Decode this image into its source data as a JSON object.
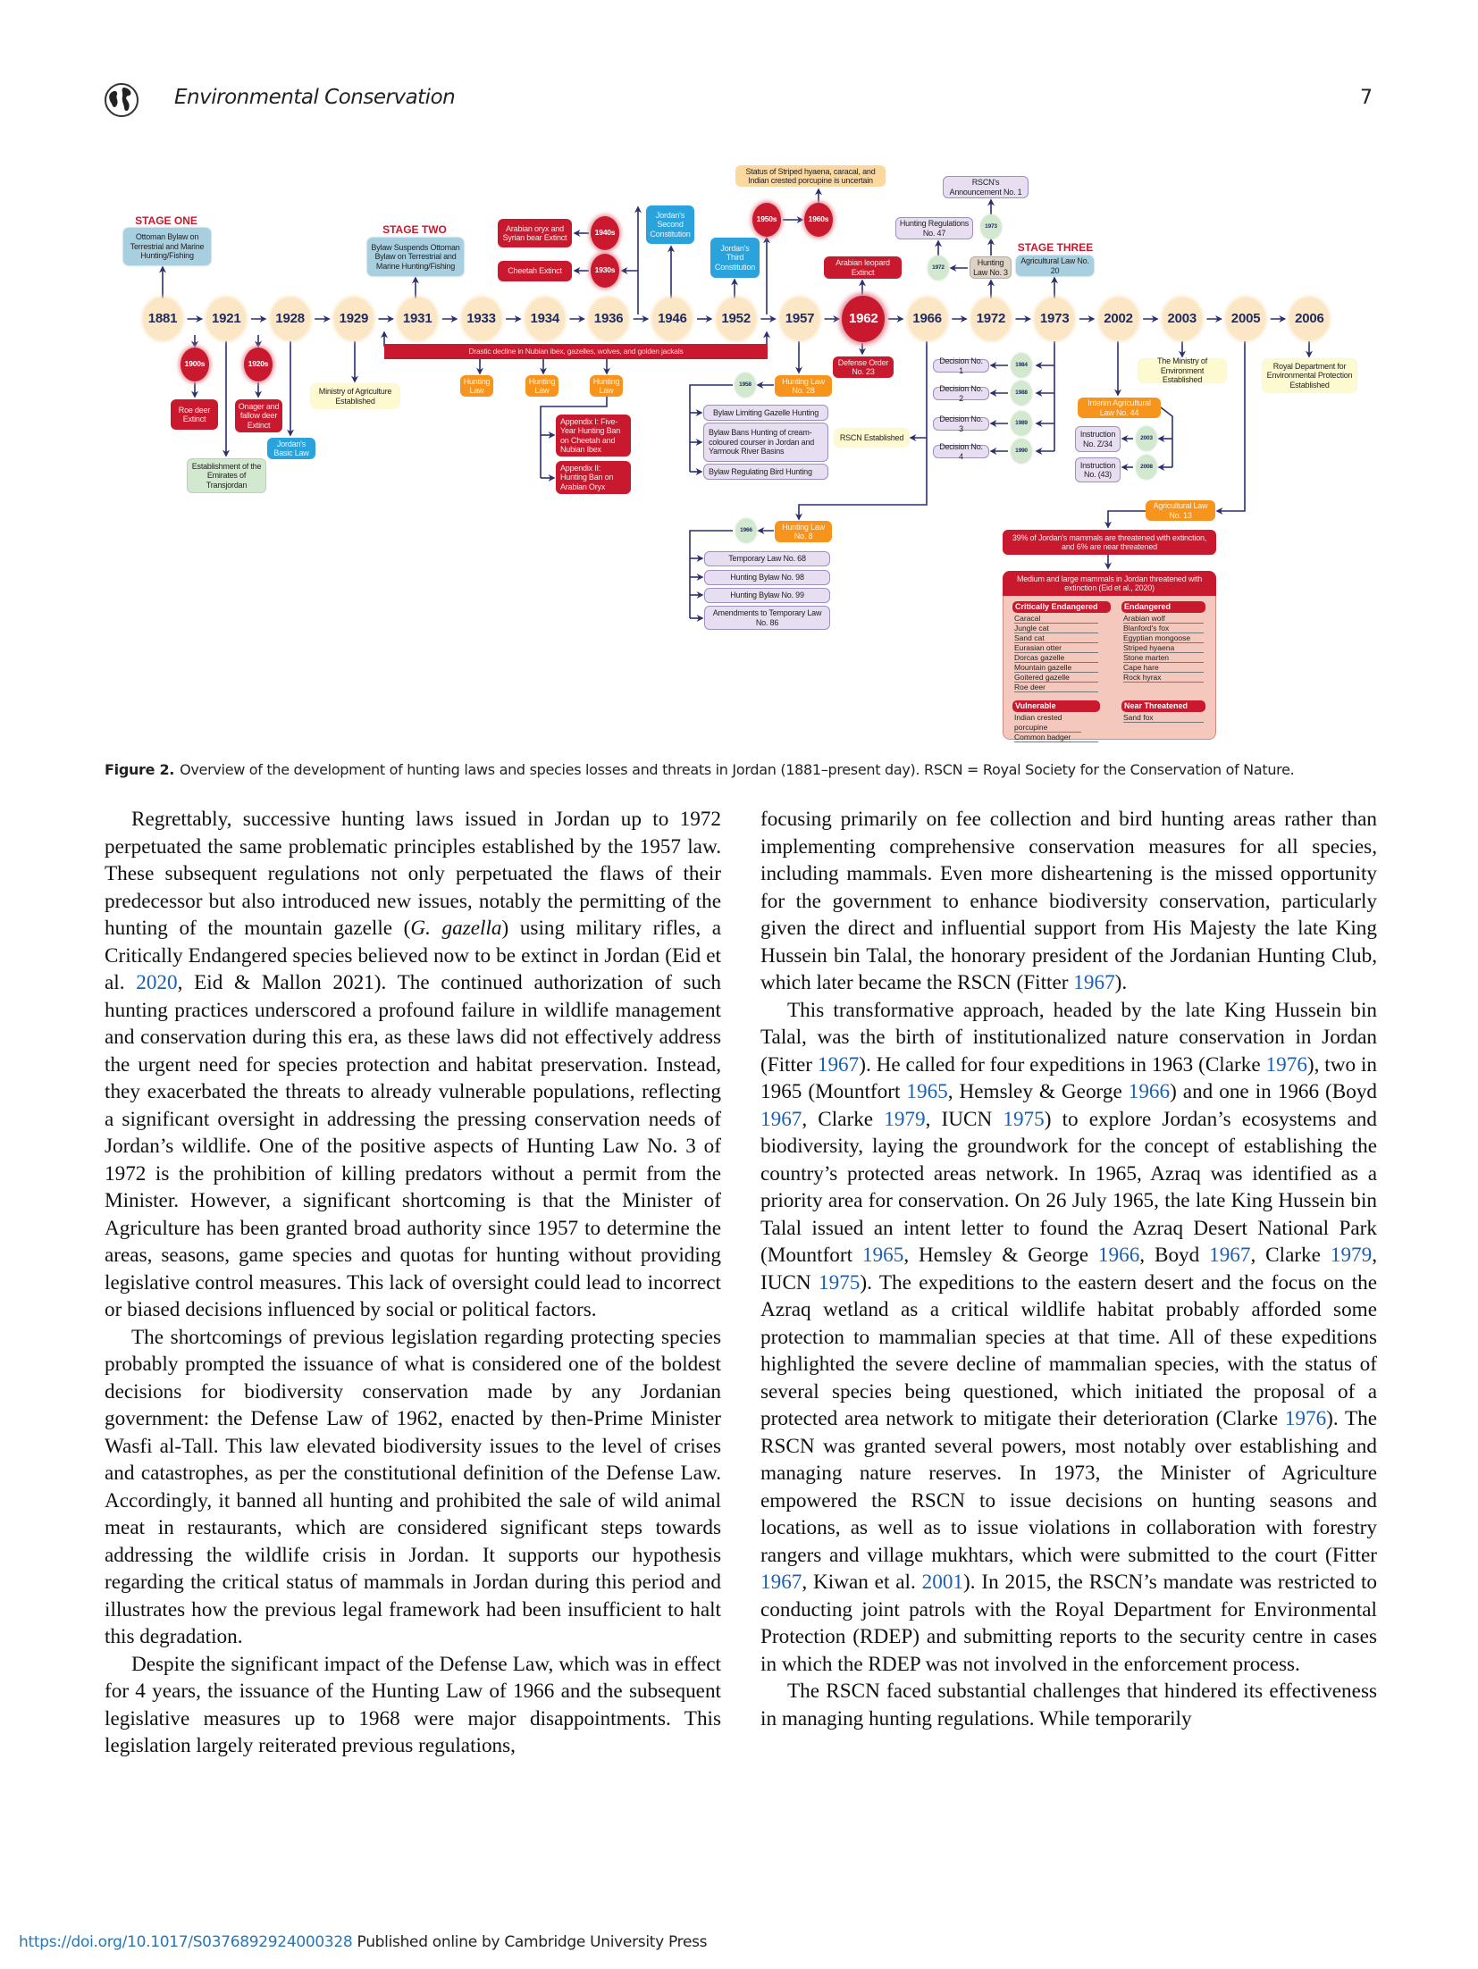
{
  "header": {
    "journal": "Environmental Conservation",
    "page_number": "7",
    "logo_icon": "globe-icon"
  },
  "colors": {
    "red": "#c8192e",
    "blue": "#2aa2db",
    "orange": "#f7941d",
    "arrow": "#2a2f6e",
    "link": "#1a5fb4"
  },
  "figure": {
    "years": [
      "1881",
      "1921",
      "1928",
      "1929",
      "1931",
      "1933",
      "1934",
      "1936",
      "1946",
      "1952",
      "1957",
      "1962",
      "1966",
      "1972",
      "1973",
      "2002",
      "2003",
      "2005",
      "2006"
    ],
    "stages": {
      "one": "STAGE ONE",
      "two": "STAGE TWO",
      "three": "STAGE THREE"
    },
    "bar": "Drastic decline in Nubian ibex, gazelles, wolves, and golden jackals",
    "nodes": {
      "ottoman": "Ottoman Bylaw on Terrestrial and Marine Hunting/Fishing",
      "d1900s": "1900s",
      "d1920s": "1920s",
      "roe_deer": "Roe deer Extinct",
      "onager": "Onager and fallow deer Extinct",
      "basic_law": "Jordan's Basic Law",
      "establishment": "Establishment of the Emirates of Transjordan",
      "ministry_ag": "Ministry of Agriculture Established",
      "bylaw_suspends": "Bylaw Suspends Ottoman Bylaw on Terrestrial and Marine Hunting/Fishing",
      "arabian_oryx": "Arabian oryx and Syrian bear Extinct",
      "d1940s": "1940s",
      "cheetah": "Cheetah Extinct",
      "d1930s": "1930s",
      "second_const": "Jordan's Second Constitution",
      "third_const": "Jordan's Third Constitution",
      "hl1933": "Hunting Law",
      "hl1934": "Hunting Law",
      "hl1936": "Hunting Law",
      "appendix1": "Appendix I: Five-Year Hunting Ban on Cheetah and Nubian Ibex",
      "appendix2": "Appendix II: Hunting Ban on Arabian Oryx",
      "status": "Status of Striped hyaena, caracal, and Indian crested porcupine is uncertain",
      "d1950s": "1950s",
      "d1960s": "1960s",
      "leopard": "Arabian leopard Extinct",
      "defense": "Defense Order No. 23",
      "hl28": "Hunting Law No. 28",
      "s1958": "1958",
      "bylaw_gazelle": "Bylaw Limiting Gazelle Hunting",
      "bylaw_courser": "Bylaw Bans Hunting of cream-coloured courser in Jordan and Yarmouk River Basins",
      "bylaw_bird": "Bylaw Regulating Bird Hunting",
      "rscn_est": "RSCN Established",
      "dec1": "Decision No. 1",
      "dec2": "Decision No. 2",
      "dec3": "Decision No. 3",
      "dec4": "Decision No. 4",
      "s1984": "1984",
      "s1988": "1988",
      "s1989": "1989",
      "s1990": "1990",
      "hunting_regs": "Hunting Regulations No. 47",
      "s1972": "1972",
      "hl3": "Hunting Law No. 3",
      "s1973": "1973",
      "rscn_ann": "RSCN's Announcement No. 1",
      "agri20": "Agricultural Law No. 20",
      "ministry_env": "The Ministry of Environment Established",
      "royal_dept": "Royal Department for Environmental Protection Established",
      "interim": "Interim Agricultural Law No. 44",
      "inst_z34": "Instruction No. Z/34",
      "s2003": "2003",
      "inst_43": "Instruction No. (43)",
      "s2008": "2008",
      "hl8": "Hunting Law No. 8",
      "s1966": "1966",
      "temp68": "Temporary Law No. 68",
      "bylaw98": "Hunting Bylaw No. 98",
      "bylaw99": "Hunting Bylaw No. 99",
      "amend86": "Amendments to Temporary Law No. 86",
      "agri13": "Agricultural Law No. 13",
      "stat39": "39% of Jordan's mammals are threatened with extinction, and 6% are near threatened",
      "medium": "Medium and large mammals in Jordan threatened with extinction (Eid et al., 2020)"
    },
    "threat_panel": {
      "critically_endangered": {
        "label": "Critically Endangered",
        "species": [
          "Caracal",
          "Jungle cat",
          "Sand cat",
          "Eurasian otter",
          "Dorcas gazelle",
          "Mountain gazelle",
          "Goitered gazelle",
          "Roe deer"
        ]
      },
      "endangered": {
        "label": "Endangered",
        "species": [
          "Arabian wolf",
          "Blanford's fox",
          "Egyptian mongoose",
          "Striped hyaena",
          "Stone marten",
          "Cape hare",
          "Rock hyrax"
        ]
      },
      "vulnerable": {
        "label": "Vulnerable",
        "species": [
          "Indian crested porcupine",
          "Common badger"
        ]
      },
      "near_threatened": {
        "label": "Near Threatened",
        "species": [
          "Sand fox"
        ]
      }
    }
  },
  "caption": {
    "label": "Figure 2.",
    "text": "Overview of the development of hunting laws and species losses and threats in Jordan (1881–present day). RSCN = Royal Society for the Conservation of Nature."
  },
  "body": {
    "left": [
      {
        "indent": true,
        "segments": [
          {
            "t": "Regrettably, successive hunting laws issued in Jordan up to 1972 perpetuated the same problematic principles established by the 1957 law. These subsequent regulations not only perpetuated the flaws of their predecessor but also introduced new issues, notably the permitting of the hunting of the mountain gazelle ("
          },
          {
            "t": "G. gazella",
            "style": "italic"
          },
          {
            "t": ") using military rifles, a Critically Endangered species believed now to be extinct in Jordan (Eid et al. "
          },
          {
            "t": "2020",
            "style": "link"
          },
          {
            "t": ", Eid & Mallon 2021). The continued authorization of such hunting practices underscored a profound failure in wildlife management and conservation during this era, as these laws did not effectively address the urgent need for species protection and habitat preservation. Instead, they exacerbated the threats to already vulnerable populations, reflecting a significant oversight in addressing the pressing conservation needs of Jordan’s wildlife. One of the positive aspects of Hunting Law No. 3 of 1972 is the prohibition of killing predators without a permit from the Minister. However, a significant shortcoming is that the Minister of Agriculture has been granted broad authority since 1957 to determine the areas, seasons, game species and quotas for hunting without providing legislative control measures. This lack of oversight could lead to incorrect or biased decisions influenced by social or political factors."
          }
        ]
      },
      {
        "indent": true,
        "segments": [
          {
            "t": "The shortcomings of previous legislation regarding protecting species probably prompted the issuance of what is considered one of the boldest decisions for biodiversity conservation made by any Jordanian government: the Defense Law of 1962, enacted by then-Prime Minister Wasfi al-Tall. This law elevated biodiversity issues to the level of crises and catastrophes, as per the constitutional definition of the Defense Law. Accordingly, it banned all hunting and prohibited the sale of wild animal meat in restaurants, which are considered significant steps towards addressing the wildlife crisis in Jordan. It supports our hypothesis regarding the critical status of mammals in Jordan during this period and illustrates how the previous legal framework had been insufficient to halt this degradation."
          }
        ]
      },
      {
        "indent": true,
        "segments": [
          {
            "t": "Despite the significant impact of the Defense Law, which was in effect for 4 years, the issuance of the Hunting Law of 1966 and the subsequent legislative measures up to 1968 were major disappoint­ments. This legislation largely reiterated previous regulations,"
          }
        ]
      }
    ],
    "right": [
      {
        "indent": false,
        "segments": [
          {
            "t": "focusing primarily on fee collection and bird hunting areas rather than implementing comprehensive conservation measures for all species, including mammals. Even more disheartening is the missed opportunity for the government to enhance biodiversity conservation, particularly given the direct and influential support from His Majesty the late King Hussein bin Talal, the honorary president of the Jordanian Hunting Club, which later became the RSCN (Fitter "
          },
          {
            "t": "1967",
            "style": "link"
          },
          {
            "t": ")."
          }
        ]
      },
      {
        "indent": true,
        "segments": [
          {
            "t": "This transformative approach, headed by the late King Hussein bin Talal, was the birth of institutionalized nature conservation in Jordan (Fitter "
          },
          {
            "t": "1967",
            "style": "link"
          },
          {
            "t": "). He called for four expeditions in 1963 (Clarke "
          },
          {
            "t": "1976",
            "style": "link"
          },
          {
            "t": "), two in 1965 (Mountfort "
          },
          {
            "t": "1965",
            "style": "link"
          },
          {
            "t": ", Hemsley & George "
          },
          {
            "t": "1966",
            "style": "link"
          },
          {
            "t": ") and one in 1966 (Boyd "
          },
          {
            "t": "1967",
            "style": "link"
          },
          {
            "t": ", Clarke "
          },
          {
            "t": "1979",
            "style": "link"
          },
          {
            "t": ", IUCN "
          },
          {
            "t": "1975",
            "style": "link"
          },
          {
            "t": ") to explore Jordan’s ecosystems and biodiversity, laying the groundwork for the concept of establishing the country’s protected areas network. In 1965, Azraq was identified as a priority area for conservation. On 26 July 1965, the late King Hussein bin Talal issued an intent letter to found the Azraq Desert National Park (Mountfort "
          },
          {
            "t": "1965",
            "style": "link"
          },
          {
            "t": ", Hemsley & George "
          },
          {
            "t": "1966",
            "style": "link"
          },
          {
            "t": ", Boyd "
          },
          {
            "t": "1967",
            "style": "link"
          },
          {
            "t": ", Clarke "
          },
          {
            "t": "1979",
            "style": "link"
          },
          {
            "t": ", IUCN "
          },
          {
            "t": "1975",
            "style": "link"
          },
          {
            "t": "). The expeditions to the eastern desert and the focus on the Azraq wetland as a critical wildlife habitat probably afforded some protection to mammalian species at that time. All of these expeditions highlighted the severe decline of mammalian species, with the status of several species being questioned, which initiated the proposal of a protected area network to mitigate their deterioration (Clarke "
          },
          {
            "t": "1976",
            "style": "link"
          },
          {
            "t": "). The RSCN was granted several powers, most notably over establishing and managing nature reserves. In 1973, the Minister of Agriculture empowered the RSCN to issue decisions on hunting seasons and locations, as well as to issue violations in collaboration with forestry rangers and village mukhtars, which were submitted to the court (Fitter "
          },
          {
            "t": "1967",
            "style": "link"
          },
          {
            "t": ", Kiwan et al. "
          },
          {
            "t": "2001",
            "style": "link"
          },
          {
            "t": "). In 2015, the RSCN’s mandate was restricted to conducting joint patrols with the Royal Department for Environmental Protection (RDEP) and submitting reports to the security centre in cases in which the RDEP was not involved in the enforcement process."
          }
        ]
      },
      {
        "indent": true,
        "segments": [
          {
            "t": "The RSCN faced substantial challenges that hindered its effectiveness in managing hunting regulations. While temporarily"
          }
        ]
      }
    ]
  },
  "footer": {
    "doi": "https://doi.org/10.1017/S0376892924000328",
    "publisher_text": " Published online by Cambridge University Press"
  }
}
